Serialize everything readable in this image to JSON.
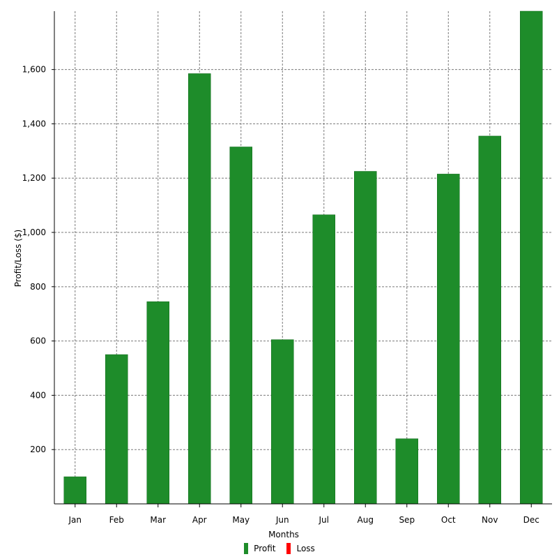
{
  "chart_data": {
    "type": "bar",
    "xlabel": "Months",
    "ylabel": "Profit/Loss ($)",
    "categories": [
      "Jan",
      "Feb",
      "Mar",
      "Apr",
      "May",
      "Jun",
      "Jul",
      "Aug",
      "Sep",
      "Oct",
      "Nov",
      "Dec"
    ],
    "series": [
      {
        "name": "Profit",
        "color": "#1e8c2a",
        "values": [
          100,
          550,
          745,
          1585,
          1315,
          605,
          1065,
          1225,
          240,
          1215,
          1355,
          1815
        ]
      },
      {
        "name": "Loss",
        "color": "#ff0000",
        "values": [
          0,
          0,
          0,
          0,
          0,
          0,
          0,
          0,
          0,
          0,
          0,
          0
        ]
      }
    ],
    "ylim": [
      0,
      1815
    ],
    "yticks": [
      200,
      400,
      600,
      800,
      1000,
      1200,
      1400,
      1600
    ],
    "ytick_labels": [
      "200",
      "400",
      "600",
      "800",
      "1,000",
      "1,200",
      "1,400",
      "1,600"
    ],
    "grid": true,
    "legend_position": "bottom-center"
  }
}
